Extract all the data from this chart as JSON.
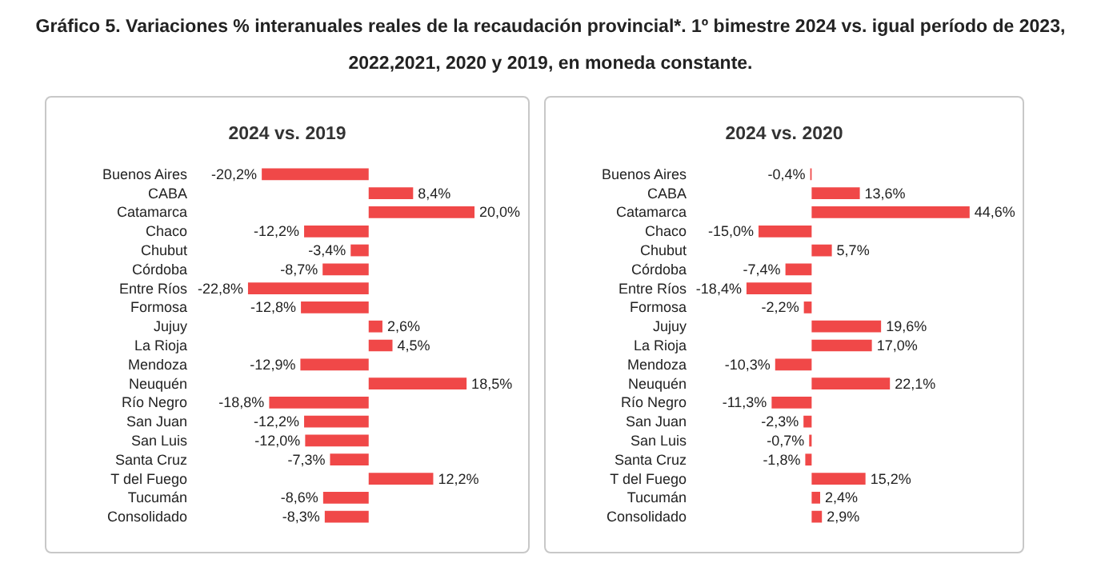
{
  "chart_data": [
    {
      "type": "bar",
      "orientation": "horizontal",
      "title": "Gráfico 5. Variaciones % interanuales reales de la recaudación provincial*. 1º bimestre 2024 vs. igual período de 2023, 2022,2021, 2020 y 2019, en moneda constante.",
      "subtitle": "2024 vs. 2019",
      "categories": [
        "Buenos Aires",
        "CABA",
        "Catamarca",
        "Chaco",
        "Chubut",
        "Córdoba",
        "Entre Ríos",
        "Formosa",
        "Jujuy",
        "La Rioja",
        "Mendoza",
        "Neuquén",
        "Río Negro",
        "San Juan",
        "San Luis",
        "Santa Cruz",
        "T del Fuego",
        "Tucumán",
        "Consolidado"
      ],
      "values": [
        -20.2,
        8.4,
        20.0,
        -12.2,
        -3.4,
        -8.7,
        -22.8,
        -12.8,
        2.6,
        4.5,
        -12.9,
        18.5,
        -18.8,
        -12.2,
        -12.0,
        -7.3,
        12.2,
        -8.6,
        -8.3
      ],
      "value_labels": [
        "-20,2%",
        "8,4%",
        "20,0%",
        "-12,2%",
        "-3,4%",
        "-8,7%",
        "-22,8%",
        "-12,8%",
        "2,6%",
        "4,5%",
        "-12,9%",
        "18,5%",
        "-18,8%",
        "-12,2%",
        "-12,0%",
        "-7,3%",
        "12,2%",
        "-8,6%",
        "-8,3%"
      ],
      "color": "#f04848",
      "grid": false
    },
    {
      "type": "bar",
      "orientation": "horizontal",
      "title": "2024 vs. 2020",
      "categories": [
        "Buenos Aires",
        "CABA",
        "Catamarca",
        "Chaco",
        "Chubut",
        "Córdoba",
        "Entre Ríos",
        "Formosa",
        "Jujuy",
        "La Rioja",
        "Mendoza",
        "Neuquén",
        "Río Negro",
        "San Juan",
        "San Luis",
        "Santa Cruz",
        "T del Fuego",
        "Tucumán",
        "Consolidado"
      ],
      "values": [
        -0.4,
        13.6,
        44.6,
        -15.0,
        5.7,
        -7.4,
        -18.4,
        -2.2,
        19.6,
        17.0,
        -10.3,
        22.1,
        -11.3,
        -2.3,
        -0.7,
        -1.8,
        15.2,
        2.4,
        2.9
      ],
      "value_labels": [
        "-0,4%",
        "13,6%",
        "44,6%",
        "-15,0%",
        "5,7%",
        "-7,4%",
        "-18,4%",
        "-2,2%",
        "19,6%",
        "17,0%",
        "-10,3%",
        "22,1%",
        "-11,3%",
        "-2,3%",
        "-0,7%",
        "-1,8%",
        "15,2%",
        "2,4%",
        "2,9%"
      ],
      "color": "#f04848",
      "grid": false
    }
  ]
}
